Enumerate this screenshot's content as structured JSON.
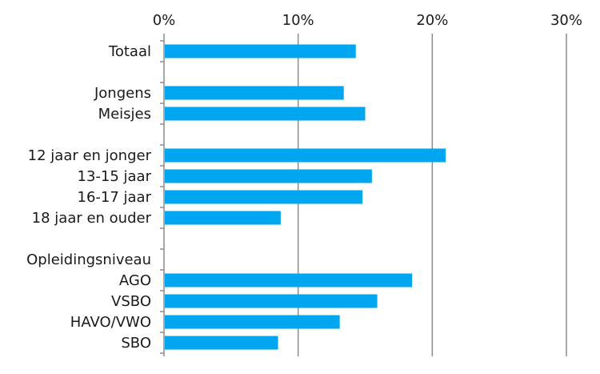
{
  "chart_data": {
    "type": "bar",
    "orientation": "horizontal",
    "title": "",
    "xlabel": "",
    "ylabel": "",
    "xlim": [
      0,
      30
    ],
    "x_ticks": [
      "0%",
      "10%",
      "20%",
      "30%"
    ],
    "x_tick_values": [
      0,
      10,
      20,
      30
    ],
    "x_axis_position": "top",
    "grid": true,
    "legend": "none",
    "bar_color": "#00A6F0",
    "categories": [
      "Totaal",
      "",
      "Jongens",
      "Meisjes",
      "",
      "12 jaar en jonger",
      "13-15 jaar",
      "16-17 jaar",
      "18 jaar en ouder",
      "",
      "Opleidingsniveau",
      "AGO",
      "VSBO",
      "HAVO/VWO",
      "SBO"
    ],
    "values": [
      14.3,
      null,
      13.4,
      15.0,
      null,
      21.0,
      15.5,
      14.8,
      8.7,
      null,
      null,
      18.5,
      15.9,
      13.1,
      8.5
    ]
  }
}
